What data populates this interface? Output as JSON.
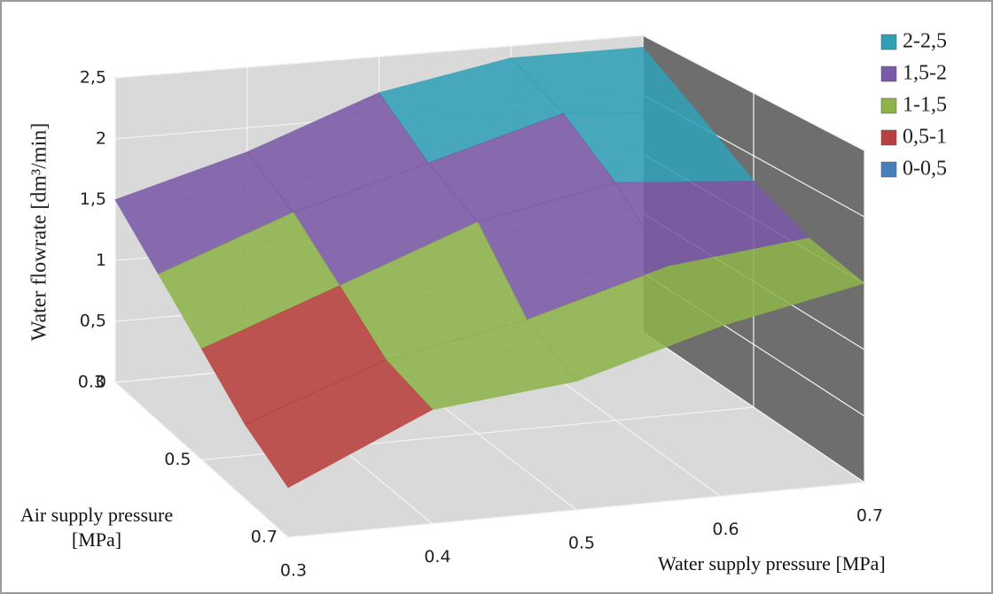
{
  "chart_data": {
    "type": "surface",
    "z_label": "Water flowrate [dm³/min]",
    "x_label": "Water supply pressure [MPa]",
    "y_label": "Air supply pressure [MPa]",
    "x": [
      0.3,
      0.4,
      0.5,
      0.6,
      0.7
    ],
    "y": [
      0.3,
      0.4,
      0.5,
      0.6,
      0.7
    ],
    "xticks": [
      0.3,
      0.4,
      0.5,
      0.6,
      0.7
    ],
    "yticks": [
      0.3,
      0.5,
      0.7
    ],
    "zlim": [
      0,
      2.5
    ],
    "zticks": [
      0,
      {
        "value": 0.5,
        "label": "0,5"
      },
      1,
      {
        "value": 1.5,
        "label": "1,5"
      },
      2,
      {
        "value": 2.5,
        "label": "2,5"
      }
    ],
    "z": [
      [
        1.5,
        1.8,
        2.2,
        2.4,
        2.4
      ],
      [
        1.2,
        1.6,
        1.9,
        2.2,
        2.1
      ],
      [
        0.9,
        1.3,
        1.7,
        1.9,
        1.8
      ],
      [
        0.6,
        1.0,
        1.2,
        1.5,
        1.6
      ],
      [
        0.4,
        0.9,
        1.0,
        1.3,
        1.5
      ]
    ],
    "legend": [
      {
        "name": "2-2,5",
        "color": "#31a0b5"
      },
      {
        "name": "1,5-2",
        "color": "#7a5aa6"
      },
      {
        "name": "1-1,5",
        "color": "#8db34a"
      },
      {
        "name": "0,5-1",
        "color": "#b8403e"
      },
      {
        "name": "0-0,5",
        "color": "#4a7ebb"
      }
    ]
  }
}
